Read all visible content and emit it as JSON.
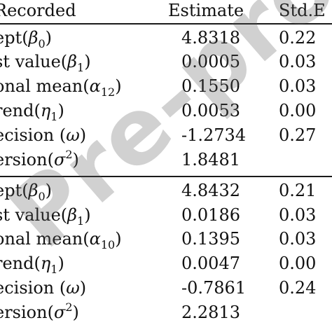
{
  "header": {
    "label": "Recorded",
    "estimate": "Estimate",
    "std_error": "Std.E"
  },
  "sections": [
    {
      "rows": [
        {
          "label_prefix": "ept(",
          "symbol": "β",
          "subscript": "0",
          "superscript": "",
          "label_suffix": ")",
          "estimate": "4.8318",
          "std_error": "0.22"
        },
        {
          "label_prefix": "st value(",
          "symbol": "β",
          "subscript": "1",
          "superscript": "",
          "label_suffix": ")",
          "estimate": "0.0005",
          "std_error": "0.03"
        },
        {
          "label_prefix": "onal mean(",
          "symbol": "α",
          "subscript": "12",
          "superscript": "",
          "label_suffix": ")",
          "estimate": "0.1550",
          "std_error": "0.03"
        },
        {
          "label_prefix": "rend(",
          "symbol": "η",
          "subscript": "1",
          "superscript": "",
          "label_suffix": ")",
          "estimate": "0.0053",
          "std_error": "0.00"
        },
        {
          "label_prefix": "ecision (",
          "symbol": "ω",
          "subscript": "",
          "superscript": "",
          "label_suffix": ")",
          "estimate": "-1.2734",
          "std_error": "0.27"
        },
        {
          "label_prefix": "ersion(",
          "symbol": "σ",
          "subscript": "",
          "superscript": "2",
          "label_suffix": ")",
          "estimate": "1.8481",
          "std_error": ""
        }
      ]
    },
    {
      "rows": [
        {
          "label_prefix": "ept(",
          "symbol": "β",
          "subscript": "0",
          "superscript": "",
          "label_suffix": ")",
          "estimate": "4.8432",
          "std_error": "0.21"
        },
        {
          "label_prefix": "st value(",
          "symbol": "β",
          "subscript": "1",
          "superscript": "",
          "label_suffix": ")",
          "estimate": "0.0186",
          "std_error": "0.03"
        },
        {
          "label_prefix": "onal mean(",
          "symbol": "α",
          "subscript": "10",
          "superscript": "",
          "label_suffix": ")",
          "estimate": "0.1395",
          "std_error": "0.03"
        },
        {
          "label_prefix": "rend(",
          "symbol": "η",
          "subscript": "1",
          "superscript": "",
          "label_suffix": ")",
          "estimate": "0.0047",
          "std_error": "0.00"
        },
        {
          "label_prefix": "ecision (",
          "symbol": "ω",
          "subscript": "",
          "superscript": "",
          "label_suffix": ")",
          "estimate": "-0.7861",
          "std_error": "0.24"
        },
        {
          "label_prefix": "ersion(",
          "symbol": "σ",
          "subscript": "",
          "superscript": "2",
          "label_suffix": ")",
          "estimate": "2.2813",
          "std_error": ""
        }
      ]
    }
  ],
  "watermark": "Pre-proof"
}
